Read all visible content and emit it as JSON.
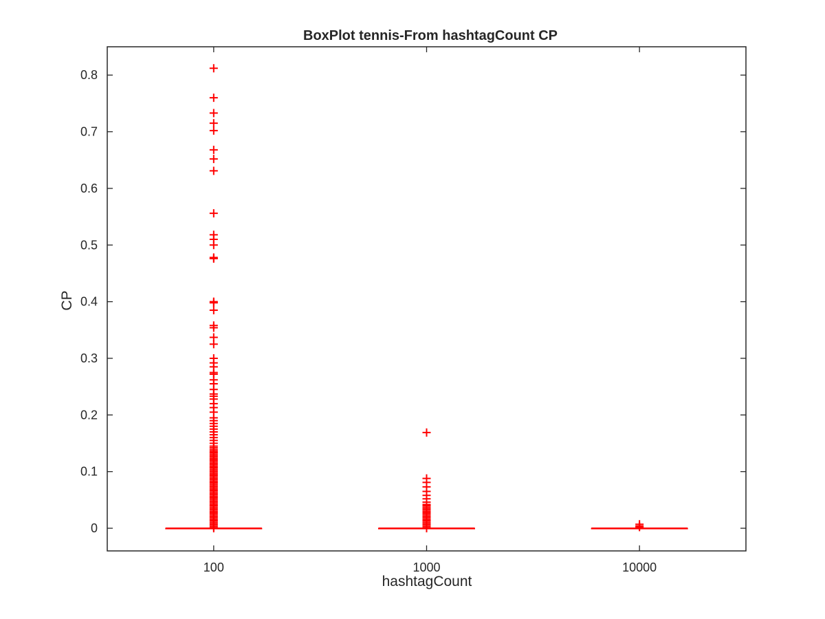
{
  "chart_data": {
    "type": "box",
    "title": "BoxPlot tennis-From hashtagCount CP",
    "xlabel": "hashtagCount",
    "ylabel": "CP",
    "categories": [
      "100",
      "1000",
      "10000"
    ],
    "ylim": [
      -0.04,
      0.85
    ],
    "yticks": [
      0,
      0.1,
      0.2,
      0.3,
      0.4,
      0.5,
      0.6,
      0.7,
      0.8
    ],
    "ytick_labels": [
      "0",
      "0.1",
      "0.2",
      "0.3",
      "0.4",
      "0.5",
      "0.6",
      "0.7",
      "0.8"
    ],
    "grid": false,
    "box_color": "#ff0000",
    "axis_color": "#262626",
    "boxes": [
      {
        "category": "100",
        "median": 0,
        "q1": 0,
        "q3": 0,
        "whisker_low": 0,
        "whisker_high": 0,
        "outlier_fill_range": [
          0.0,
          0.14
        ],
        "outliers": [
          0.812,
          0.76,
          0.733,
          0.715,
          0.702,
          0.668,
          0.652,
          0.631,
          0.556,
          0.518,
          0.51,
          0.5,
          0.478,
          0.476,
          0.4,
          0.398,
          0.385,
          0.358,
          0.354,
          0.337,
          0.325,
          0.3,
          0.292,
          0.285,
          0.275,
          0.272,
          0.262,
          0.255,
          0.245,
          0.237,
          0.233,
          0.228,
          0.22,
          0.213,
          0.205,
          0.195,
          0.19,
          0.185,
          0.18,
          0.175,
          0.17,
          0.165,
          0.16,
          0.155,
          0.15,
          0.145,
          0.142
        ]
      },
      {
        "category": "1000",
        "median": 0,
        "q1": 0,
        "q3": 0,
        "whisker_low": 0,
        "whisker_high": 0,
        "outlier_fill_range": [
          0.0,
          0.042
        ],
        "outliers": [
          0.169,
          0.088,
          0.081,
          0.073,
          0.065,
          0.058,
          0.052,
          0.046,
          0.042
        ]
      },
      {
        "category": "10000",
        "median": 0,
        "q1": 0,
        "q3": 0,
        "whisker_low": 0,
        "whisker_high": 0,
        "outlier_fill_range": null,
        "outliers": [
          0.007,
          0.004,
          0.002
        ]
      }
    ]
  }
}
